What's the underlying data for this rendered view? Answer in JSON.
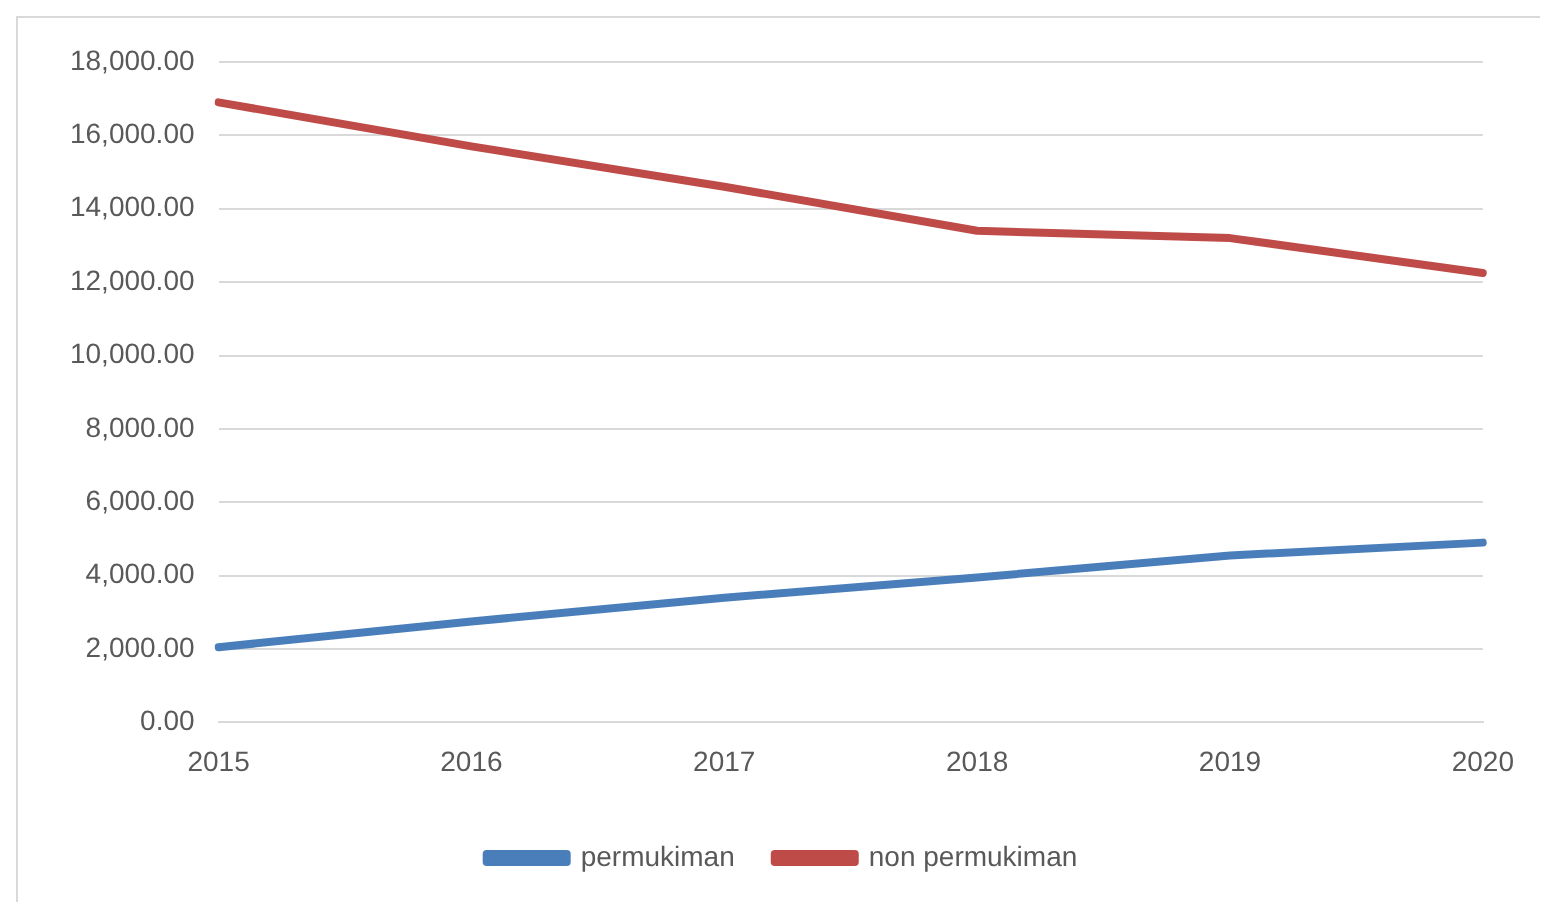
{
  "chart_data": {
    "type": "line",
    "categories": [
      "2015",
      "2016",
      "2017",
      "2018",
      "2019",
      "2020"
    ],
    "series": [
      {
        "name": "permukiman",
        "color": "#4a7ebb",
        "values": [
          2050,
          2750,
          3400,
          3950,
          4550,
          4900
        ]
      },
      {
        "name": "non permukiman",
        "color": "#be4b48",
        "values": [
          16900,
          15700,
          14600,
          13400,
          13200,
          12250
        ]
      }
    ],
    "ylim": [
      0,
      18000
    ],
    "yticks": [
      {
        "value": 0,
        "label": "0.00"
      },
      {
        "value": 2000,
        "label": "2,000.00"
      },
      {
        "value": 4000,
        "label": "4,000.00"
      },
      {
        "value": 6000,
        "label": "6,000.00"
      },
      {
        "value": 8000,
        "label": "8,000.00"
      },
      {
        "value": 10000,
        "label": "10,000.00"
      },
      {
        "value": 12000,
        "label": "12,000.00"
      },
      {
        "value": 14000,
        "label": "14,000.00"
      },
      {
        "value": 16000,
        "label": "16,000.00"
      },
      {
        "value": 18000,
        "label": "18,000.00"
      }
    ],
    "grid": "y",
    "legend": "bottom",
    "marker": "none",
    "line_style": "solid"
  }
}
